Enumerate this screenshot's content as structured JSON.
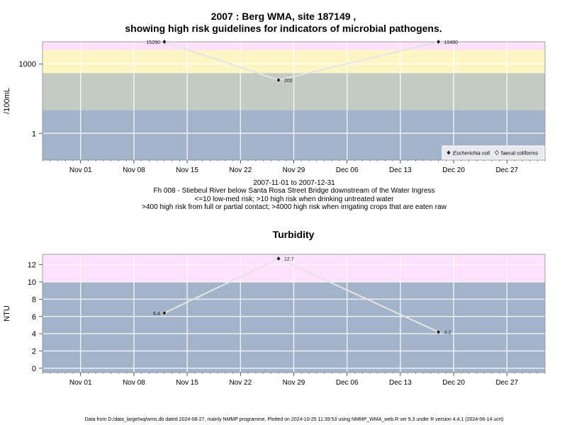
{
  "chart_data": [
    {
      "type": "line",
      "title": "2007 : Berg WMA, site 187149 ,",
      "subtitle": "showing high risk guidelines for indicators of microbial pathogens.",
      "ylabel": "/100mL",
      "yscale": "log",
      "ylim": [
        0.07,
        9000
      ],
      "xlim": [
        "2007-10-27",
        "2008-01-01"
      ],
      "xticks": [
        "Nov 01",
        "Nov 08",
        "Nov 15",
        "Nov 22",
        "Nov 29",
        "Dec 06",
        "Dec 13",
        "Dec 20",
        "Dec 27"
      ],
      "yticks": [
        "1",
        "1000"
      ],
      "bands": [
        {
          "from": 0.07,
          "to": 10,
          "color": "#a3b3c9"
        },
        {
          "from": 10,
          "to": 400,
          "color": "#c4cbc3"
        },
        {
          "from": 400,
          "to": 4000,
          "color": "#fdf5c3"
        },
        {
          "from": 4000,
          "to": 9000,
          "color": "#fee1fd"
        }
      ],
      "series": [
        {
          "name": "Escherichia coli",
          "marker": "filled-diamond",
          "points": [
            {
              "x": "2007-11-12",
              "y": 15290,
              "label": "15290"
            },
            {
              "x": "2007-11-27",
              "y": 200,
              "label": "200"
            },
            {
              "x": "2007-12-18",
              "y": 10480,
              "label": "10480"
            }
          ]
        }
      ],
      "legend": {
        "position": "bottom-right",
        "entries": [
          "Escherichia coli",
          "faecal coliforms"
        ]
      }
    },
    {
      "type": "line",
      "title": "Turbidity",
      "ylabel": "NTU",
      "ylim": [
        -0.5,
        13.2
      ],
      "xlim": [
        "2007-10-27",
        "2008-01-01"
      ],
      "xticks": [
        "Nov 01",
        "Nov 08",
        "Nov 15",
        "Nov 22",
        "Nov 29",
        "Dec 06",
        "Dec 13",
        "Dec 20",
        "Dec 27"
      ],
      "yticks": [
        "0",
        "2",
        "4",
        "6",
        "8",
        "10",
        "12"
      ],
      "bands": [
        {
          "from": -0.5,
          "to": 10,
          "color": "#a3b3c9"
        },
        {
          "from": 10,
          "to": 13.2,
          "color": "#fee1fd"
        }
      ],
      "series": [
        {
          "marker": "filled-diamond",
          "points": [
            {
              "x": "2007-11-12",
              "y": 6.4,
              "label": "6.4"
            },
            {
              "x": "2007-11-27",
              "y": 12.7,
              "label": "12.7"
            },
            {
              "x": "2007-12-18",
              "y": 4.2,
              "label": "4.2"
            }
          ]
        }
      ]
    }
  ],
  "caption": {
    "period": "2007-11-01 to 2007-12-31",
    "site": "Fh 008 - Stiebeul River below Santa Rosa Street Bridge downstream of the Water Ingress",
    "risk_line1": "<=10 low-med risk; >10 high risk when drinking untreated water",
    "risk_line2": ">400 high risk from full or partial contact; >4000 high risk when irrigating crops that are eaten raw"
  },
  "footer": "Data from D:/data_large/wq/wms.db dated 2024-08-27, mainly NMMP programme. Plotted on 2024-10-25 11:39:53 using NMMP_WMA_web.R ver 9.3 under R version 4.4.1 (2024-06-14 ucrt)"
}
